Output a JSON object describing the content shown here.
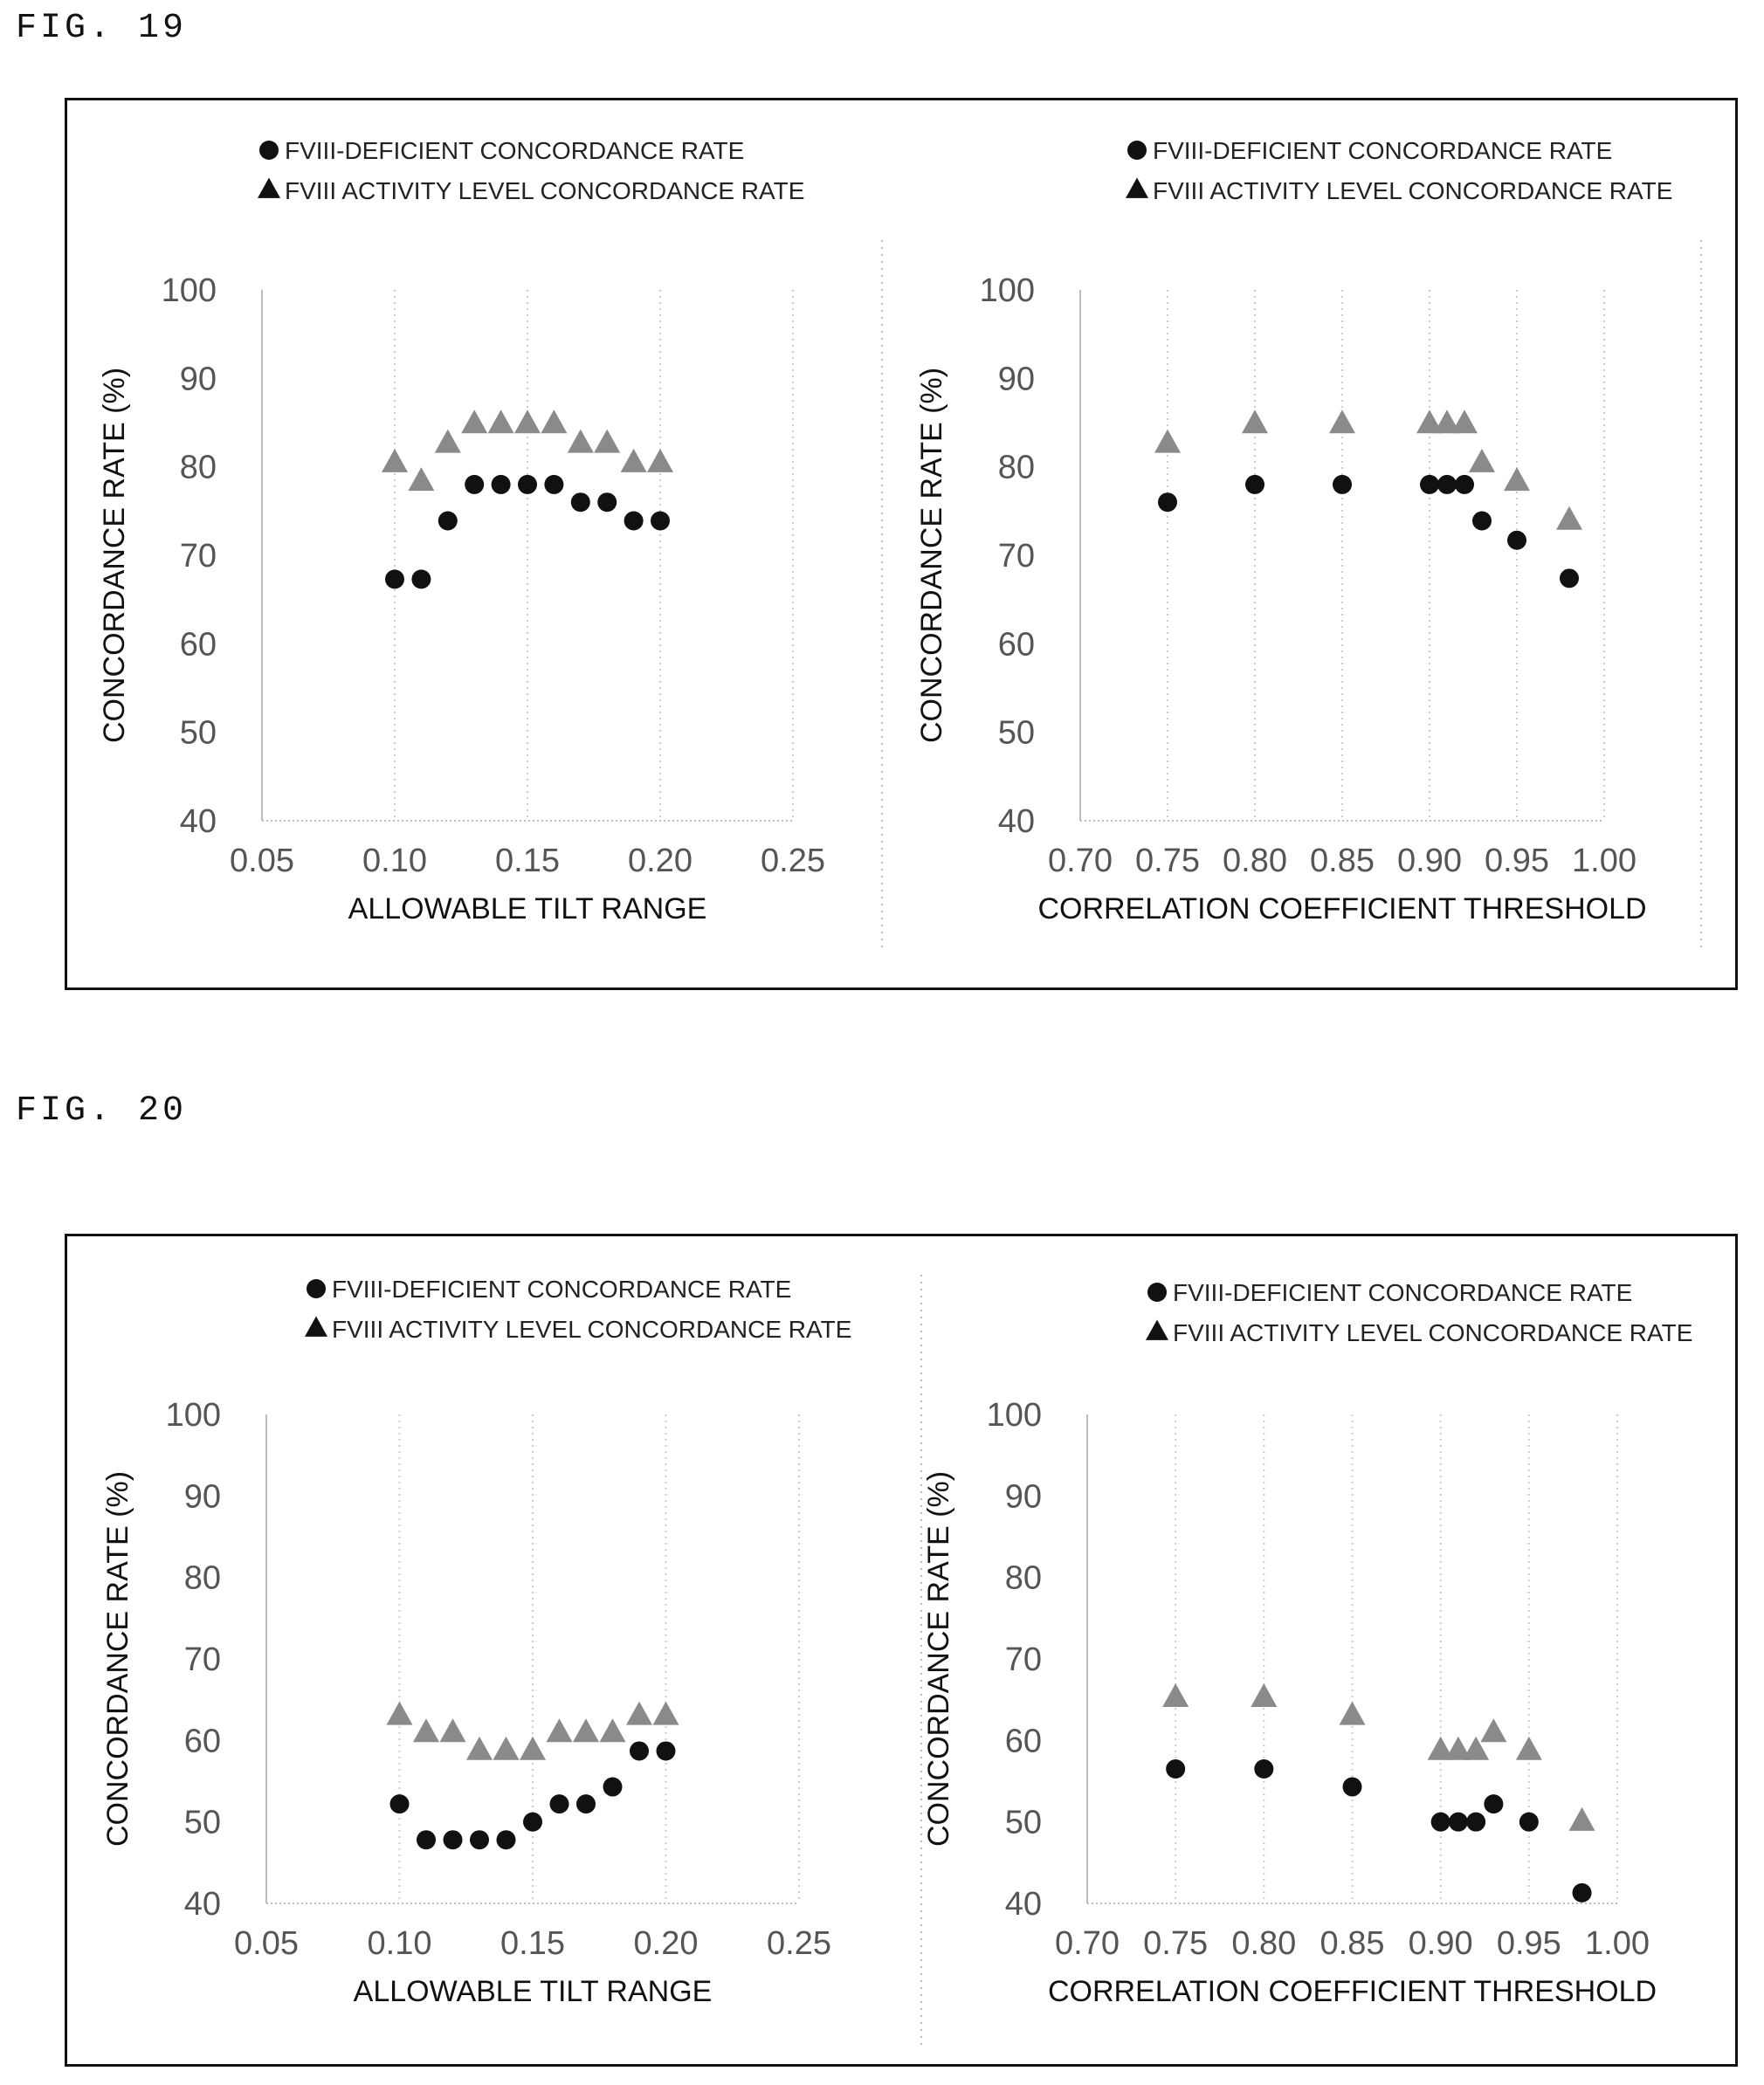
{
  "figures": [
    {
      "label": "FIG. 19"
    },
    {
      "label": "FIG. 20"
    }
  ],
  "colors": {
    "deficient": "#111111",
    "activity": "#8a8a8a",
    "frame": "#111111",
    "grid": "#cccccc"
  },
  "chart_data": [
    {
      "figure": "FIG. 19",
      "type": "scatter",
      "xlabel": "ALLOWABLE TILT RANGE",
      "ylabel": "CONCORDANCE RATE (%)",
      "xlim": [
        0.05,
        0.25
      ],
      "ylim": [
        40,
        100
      ],
      "x_ticks": [
        "0.05",
        "0.10",
        "0.15",
        "0.20",
        "0.25"
      ],
      "y_ticks": [
        "40",
        "50",
        "60",
        "70",
        "80",
        "90",
        "100"
      ],
      "grid": "vertical dotted",
      "legend_position": "top-left",
      "series": [
        {
          "name": "FVIII-DEFICIENT CONCORDANCE RATE",
          "marker": "circle",
          "x": [
            0.1,
            0.11,
            0.12,
            0.13,
            0.14,
            0.15,
            0.16,
            0.17,
            0.18,
            0.19,
            0.2
          ],
          "y": [
            67.3,
            67.3,
            73.9,
            78.0,
            78.0,
            78.0,
            78.0,
            76.0,
            76.0,
            73.9,
            73.9
          ]
        },
        {
          "name": "FVIII ACTIVITY LEVEL CONCORDANCE RATE",
          "marker": "triangle",
          "x": [
            0.1,
            0.11,
            0.12,
            0.13,
            0.14,
            0.15,
            0.16,
            0.17,
            0.18,
            0.19,
            0.2
          ],
          "y": [
            80.4,
            78.3,
            82.6,
            84.8,
            84.8,
            84.8,
            84.8,
            82.6,
            82.6,
            80.4,
            80.4
          ]
        }
      ]
    },
    {
      "figure": "FIG. 19",
      "type": "scatter",
      "xlabel": "CORRELATION COEFFICIENT THRESHOLD",
      "ylabel": "CONCORDANCE RATE (%)",
      "xlim": [
        0.7,
        1.0
      ],
      "ylim": [
        40,
        100
      ],
      "x_ticks": [
        "0.70",
        "0.75",
        "0.80",
        "0.85",
        "0.90",
        "0.95",
        "1.00"
      ],
      "y_ticks": [
        "40",
        "50",
        "60",
        "70",
        "80",
        "90",
        "100"
      ],
      "grid": "vertical dotted",
      "legend_position": "top-right",
      "series": [
        {
          "name": "FVIII-DEFICIENT CONCORDANCE RATE",
          "marker": "circle",
          "x": [
            0.75,
            0.8,
            0.85,
            0.9,
            0.91,
            0.92,
            0.93,
            0.95,
            0.98
          ],
          "y": [
            76.0,
            78.0,
            78.0,
            78.0,
            78.0,
            78.0,
            73.9,
            71.7,
            67.4
          ]
        },
        {
          "name": "FVIII ACTIVITY LEVEL CONCORDANCE RATE",
          "marker": "triangle",
          "x": [
            0.75,
            0.8,
            0.85,
            0.9,
            0.91,
            0.92,
            0.93,
            0.95,
            0.98
          ],
          "y": [
            82.6,
            84.8,
            84.8,
            84.8,
            84.8,
            84.8,
            80.4,
            78.3,
            73.9
          ]
        }
      ]
    },
    {
      "figure": "FIG. 20",
      "type": "scatter",
      "xlabel": "ALLOWABLE TILT RANGE",
      "ylabel": "CONCORDANCE RATE (%)",
      "xlim": [
        0.05,
        0.25
      ],
      "ylim": [
        40,
        100
      ],
      "x_ticks": [
        "0.05",
        "0.10",
        "0.15",
        "0.20",
        "0.25"
      ],
      "y_ticks": [
        "40",
        "50",
        "60",
        "70",
        "80",
        "90",
        "100"
      ],
      "grid": "vertical dotted",
      "legend_position": "top-left",
      "series": [
        {
          "name": "FVIII-DEFICIENT CONCORDANCE RATE",
          "marker": "circle",
          "x": [
            0.1,
            0.11,
            0.12,
            0.13,
            0.14,
            0.15,
            0.16,
            0.17,
            0.18,
            0.19,
            0.2
          ],
          "y": [
            52.2,
            47.8,
            47.8,
            47.8,
            47.8,
            50.0,
            52.2,
            52.2,
            54.3,
            58.7,
            58.7
          ]
        },
        {
          "name": "FVIII ACTIVITY LEVEL CONCORDANCE RATE",
          "marker": "triangle",
          "x": [
            0.1,
            0.11,
            0.12,
            0.13,
            0.14,
            0.15,
            0.16,
            0.17,
            0.18,
            0.19,
            0.2
          ],
          "y": [
            63.0,
            60.9,
            60.9,
            58.7,
            58.7,
            58.7,
            60.9,
            60.9,
            60.9,
            63.0,
            63.0
          ]
        }
      ]
    },
    {
      "figure": "FIG. 20",
      "type": "scatter",
      "xlabel": "CORRELATION COEFFICIENT THRESHOLD",
      "ylabel": "CONCORDANCE RATE (%)",
      "xlim": [
        0.7,
        1.0
      ],
      "ylim": [
        40,
        100
      ],
      "x_ticks": [
        "0.70",
        "0.75",
        "0.80",
        "0.85",
        "0.90",
        "0.95",
        "1.00"
      ],
      "y_ticks": [
        "40",
        "50",
        "60",
        "70",
        "80",
        "90",
        "100"
      ],
      "grid": "vertical dotted",
      "legend_position": "top-right",
      "series": [
        {
          "name": "FVIII-DEFICIENT CONCORDANCE RATE",
          "marker": "circle",
          "x": [
            0.75,
            0.8,
            0.85,
            0.9,
            0.91,
            0.92,
            0.93,
            0.95,
            0.98
          ],
          "y": [
            56.5,
            56.5,
            54.3,
            50.0,
            50.0,
            50.0,
            52.2,
            50.0,
            41.3
          ]
        },
        {
          "name": "FVIII ACTIVITY LEVEL CONCORDANCE RATE",
          "marker": "triangle",
          "x": [
            0.75,
            0.8,
            0.85,
            0.9,
            0.91,
            0.92,
            0.93,
            0.95,
            0.98
          ],
          "y": [
            65.2,
            65.2,
            63.0,
            58.7,
            58.7,
            58.7,
            60.9,
            58.7,
            50.0
          ]
        }
      ]
    }
  ]
}
